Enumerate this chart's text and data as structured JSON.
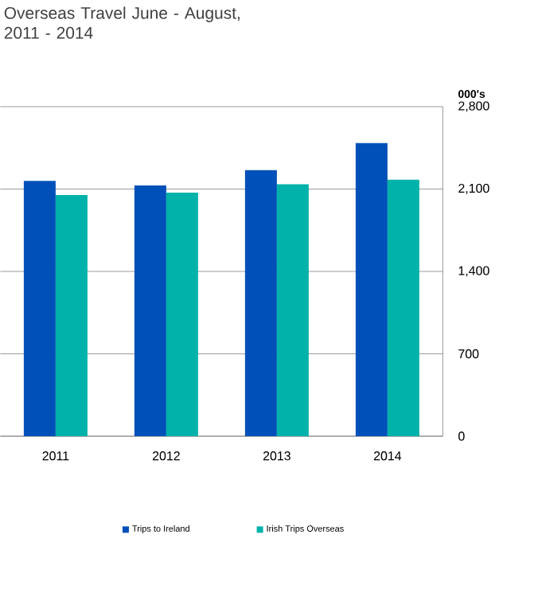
{
  "chart_data": {
    "type": "bar",
    "title": "Overseas Travel June - August,\n2011 - 2014",
    "ylabel": "000's",
    "categories": [
      "2011",
      "2012",
      "2013",
      "2014"
    ],
    "series": [
      {
        "name": "Trips to Ireland",
        "color": "#0050b9",
        "values": [
          2170,
          2130,
          2260,
          2490
        ]
      },
      {
        "name": "Irish Trips Overseas",
        "color": "#00b2a9",
        "values": [
          2050,
          2070,
          2140,
          2180
        ]
      }
    ],
    "ylim": [
      0,
      2800
    ],
    "yticks": [
      0,
      700,
      {
        "value": 1400,
        "label": "1,400"
      },
      {
        "value": 2100,
        "label": "2,100"
      },
      {
        "value": 2800,
        "label": "2,800"
      }
    ],
    "grid": "y",
    "legend": "bottom"
  }
}
